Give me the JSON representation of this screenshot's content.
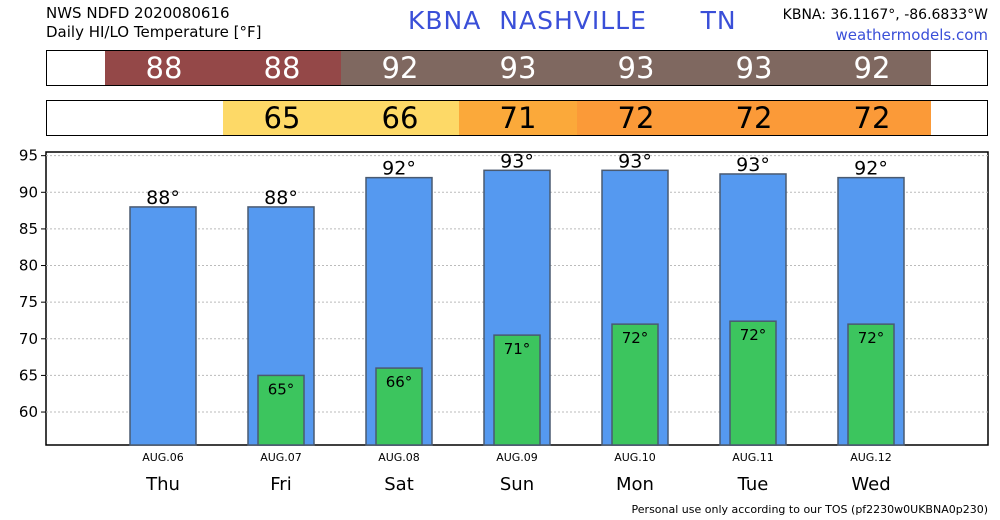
{
  "header": {
    "line1": "NWS NDFD 2020080616",
    "line2": "Daily HI/LO Temperature [°F]",
    "station_code": "KBNA",
    "city": "NASHVILLE",
    "state": "TN",
    "coords": "KBNA: 36.1167°, -86.6833°W",
    "site": "weathermodels.com"
  },
  "hi_strip": [
    {
      "value": "88",
      "color": "#944848"
    },
    {
      "value": "88",
      "color": "#944848"
    },
    {
      "value": "92",
      "color": "#7f6860"
    },
    {
      "value": "93",
      "color": "#7f6860"
    },
    {
      "value": "93",
      "color": "#7f6860"
    },
    {
      "value": "93",
      "color": "#7f6860"
    },
    {
      "value": "92",
      "color": "#7f6860"
    }
  ],
  "lo_strip": [
    {
      "value": "",
      "color": "#ffffff"
    },
    {
      "value": "65",
      "color": "#fdd967"
    },
    {
      "value": "66",
      "color": "#fdd967"
    },
    {
      "value": "71",
      "color": "#fba93a"
    },
    {
      "value": "72",
      "color": "#fb9a38"
    },
    {
      "value": "72",
      "color": "#fb9a38"
    },
    {
      "value": "72",
      "color": "#fb9a38"
    }
  ],
  "chart_data": {
    "type": "bar",
    "categories": [
      "AUG.06",
      "AUG.07",
      "AUG.08",
      "AUG.09",
      "AUG.10",
      "AUG.11",
      "AUG.12"
    ],
    "days": [
      "Thu",
      "Fri",
      "Sat",
      "Sun",
      "Mon",
      "Tue",
      "Wed"
    ],
    "series": [
      {
        "values": [
          88,
          88,
          92,
          93,
          93,
          92.5,
          92
        ],
        "labels": [
          "88°",
          "88°",
          "92°",
          "93°",
          "93°",
          "93°",
          "92°"
        ],
        "color": "#5599f0"
      },
      {
        "values": [
          null,
          65,
          66,
          70.5,
          72,
          72.4,
          72
        ],
        "labels": [
          "",
          "65°",
          "66°",
          "71°",
          "72°",
          "72°",
          "72°"
        ],
        "color": "#3cc55e"
      }
    ],
    "ylim": [
      55.5,
      95.5
    ],
    "yticks": [
      60,
      65,
      70,
      75,
      80,
      85,
      90,
      95
    ],
    "grid": true
  },
  "footer": "Personal use only according to our TOS (pf2230w0UKBNA0p230)"
}
